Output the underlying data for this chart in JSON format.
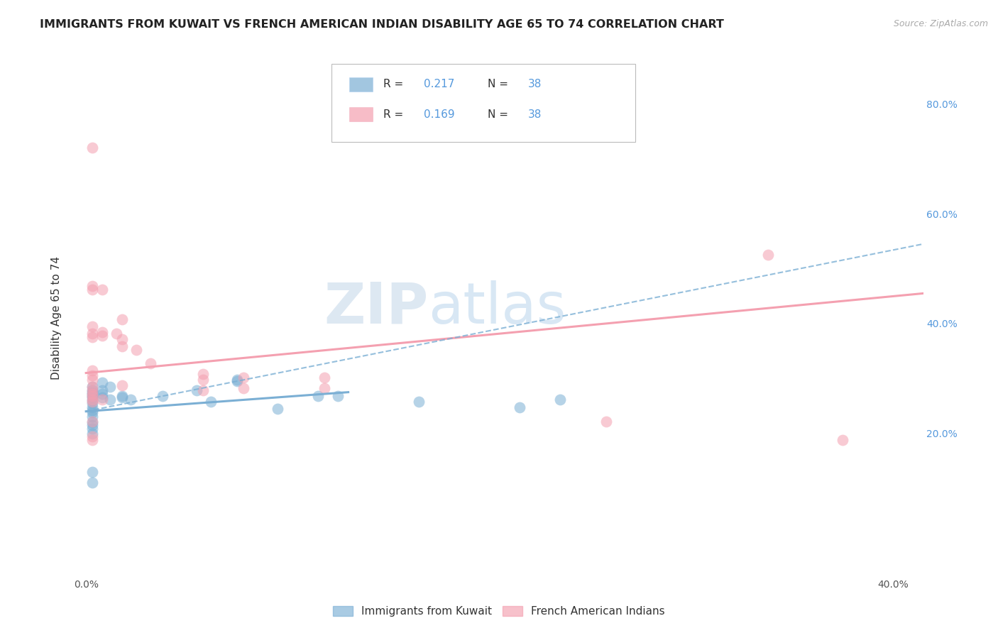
{
  "title": "IMMIGRANTS FROM KUWAIT VS FRENCH AMERICAN INDIAN DISABILITY AGE 65 TO 74 CORRELATION CHART",
  "source": "Source: ZipAtlas.com",
  "ylabel": "Disability Age 65 to 74",
  "x_ticks": [
    0.0,
    0.4
  ],
  "x_tick_labels": [
    "0.0%",
    "40.0%"
  ],
  "y_ticks": [
    0.0,
    0.2,
    0.4,
    0.6,
    0.8
  ],
  "y_tick_labels_right": [
    "",
    "20.0%",
    "40.0%",
    "60.0%",
    "80.0%"
  ],
  "xlim": [
    -0.008,
    0.415
  ],
  "ylim": [
    -0.06,
    0.88
  ],
  "legend_label1": "Immigrants from Kuwait",
  "legend_label2": "French American Indians",
  "blue_color": "#7bafd4",
  "pink_color": "#f4a0b0",
  "watermark_zip": "ZIP",
  "watermark_atlas": "atlas",
  "blue_scatter": [
    [
      0.003,
      0.275
    ],
    [
      0.003,
      0.285
    ],
    [
      0.003,
      0.278
    ],
    [
      0.003,
      0.268
    ],
    [
      0.003,
      0.272
    ],
    [
      0.003,
      0.265
    ],
    [
      0.003,
      0.26
    ],
    [
      0.003,
      0.255
    ],
    [
      0.003,
      0.248
    ],
    [
      0.003,
      0.242
    ],
    [
      0.003,
      0.238
    ],
    [
      0.003,
      0.23
    ],
    [
      0.003,
      0.22
    ],
    [
      0.003,
      0.215
    ],
    [
      0.003,
      0.208
    ],
    [
      0.003,
      0.2
    ],
    [
      0.003,
      0.13
    ],
    [
      0.003,
      0.11
    ],
    [
      0.008,
      0.292
    ],
    [
      0.008,
      0.278
    ],
    [
      0.008,
      0.265
    ],
    [
      0.008,
      0.272
    ],
    [
      0.012,
      0.285
    ],
    [
      0.012,
      0.262
    ],
    [
      0.018,
      0.268
    ],
    [
      0.018,
      0.265
    ],
    [
      0.022,
      0.262
    ],
    [
      0.038,
      0.268
    ],
    [
      0.055,
      0.278
    ],
    [
      0.062,
      0.258
    ],
    [
      0.075,
      0.298
    ],
    [
      0.075,
      0.295
    ],
    [
      0.095,
      0.245
    ],
    [
      0.115,
      0.268
    ],
    [
      0.125,
      0.268
    ],
    [
      0.165,
      0.258
    ],
    [
      0.215,
      0.248
    ],
    [
      0.235,
      0.262
    ]
  ],
  "pink_scatter": [
    [
      0.003,
      0.72
    ],
    [
      0.003,
      0.468
    ],
    [
      0.003,
      0.462
    ],
    [
      0.003,
      0.382
    ],
    [
      0.003,
      0.395
    ],
    [
      0.003,
      0.375
    ],
    [
      0.003,
      0.315
    ],
    [
      0.003,
      0.305
    ],
    [
      0.003,
      0.298
    ],
    [
      0.003,
      0.285
    ],
    [
      0.003,
      0.278
    ],
    [
      0.003,
      0.272
    ],
    [
      0.003,
      0.268
    ],
    [
      0.003,
      0.262
    ],
    [
      0.003,
      0.258
    ],
    [
      0.003,
      0.222
    ],
    [
      0.003,
      0.195
    ],
    [
      0.003,
      0.188
    ],
    [
      0.008,
      0.462
    ],
    [
      0.008,
      0.385
    ],
    [
      0.008,
      0.378
    ],
    [
      0.008,
      0.262
    ],
    [
      0.015,
      0.382
    ],
    [
      0.018,
      0.408
    ],
    [
      0.018,
      0.372
    ],
    [
      0.018,
      0.358
    ],
    [
      0.018,
      0.288
    ],
    [
      0.025,
      0.352
    ],
    [
      0.032,
      0.328
    ],
    [
      0.058,
      0.308
    ],
    [
      0.058,
      0.298
    ],
    [
      0.058,
      0.278
    ],
    [
      0.078,
      0.302
    ],
    [
      0.078,
      0.282
    ],
    [
      0.118,
      0.302
    ],
    [
      0.118,
      0.282
    ],
    [
      0.258,
      0.222
    ],
    [
      0.338,
      0.525
    ],
    [
      0.375,
      0.188
    ]
  ],
  "blue_solid_line_x": [
    0.0,
    0.13
  ],
  "blue_solid_line_y": [
    0.24,
    0.275
  ],
  "pink_solid_line_x": [
    0.0,
    0.415
  ],
  "pink_solid_line_y": [
    0.31,
    0.455
  ],
  "blue_dashed_line_x": [
    0.0,
    0.415
  ],
  "blue_dashed_line_y": [
    0.24,
    0.545
  ],
  "grid_color": "#cccccc",
  "grid_linestyle": "--",
  "title_fontsize": 11.5,
  "source_fontsize": 9,
  "ylabel_fontsize": 11,
  "tick_fontsize": 10,
  "right_tick_color": "#5599dd",
  "text_color": "#222222"
}
